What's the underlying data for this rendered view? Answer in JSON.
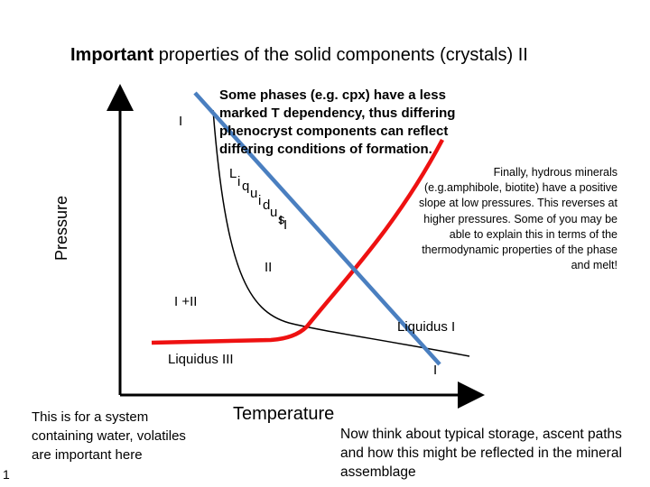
{
  "title": {
    "bold": "Important",
    "rest": " properties of the solid components (crystals) II"
  },
  "axes": {
    "y_label": "Pressure",
    "x_label": "Temperature"
  },
  "colors": {
    "liquidus_I": "#ee1111",
    "liquidus_II": "#4a7fc0",
    "liquidus_III": "#000000"
  },
  "labels": {
    "region_I_top": "I",
    "region_II": "II",
    "region_I_II": "I +II",
    "region_I_bottom": "I",
    "liquidus_I": "Liquidus I",
    "liquidus_III": "Liquidus III",
    "liquidus_II_chars": [
      "L",
      "i",
      "q",
      "u",
      "i",
      "d",
      "u",
      "s",
      " ",
      "I",
      "I"
    ]
  },
  "notes": {
    "top": "Some phases (e.g. cpx) have a less marked T dependency, thus differing phenocryst components can reflect differing conditions of formation.",
    "right": "Finally, hydrous minerals (e.g.amphibole, biotite) have a positive slope at low pressures. This reverses at higher pressures. Some of you may be able to explain this in terms of the thermodynamic properties of the phase and melt!",
    "left": "This is for a system containing water, volatiles are important here",
    "bottom": "Now think about typical storage, ascent paths and how this might be reflected in the mineral assemblage"
  },
  "slide_number": "1"
}
